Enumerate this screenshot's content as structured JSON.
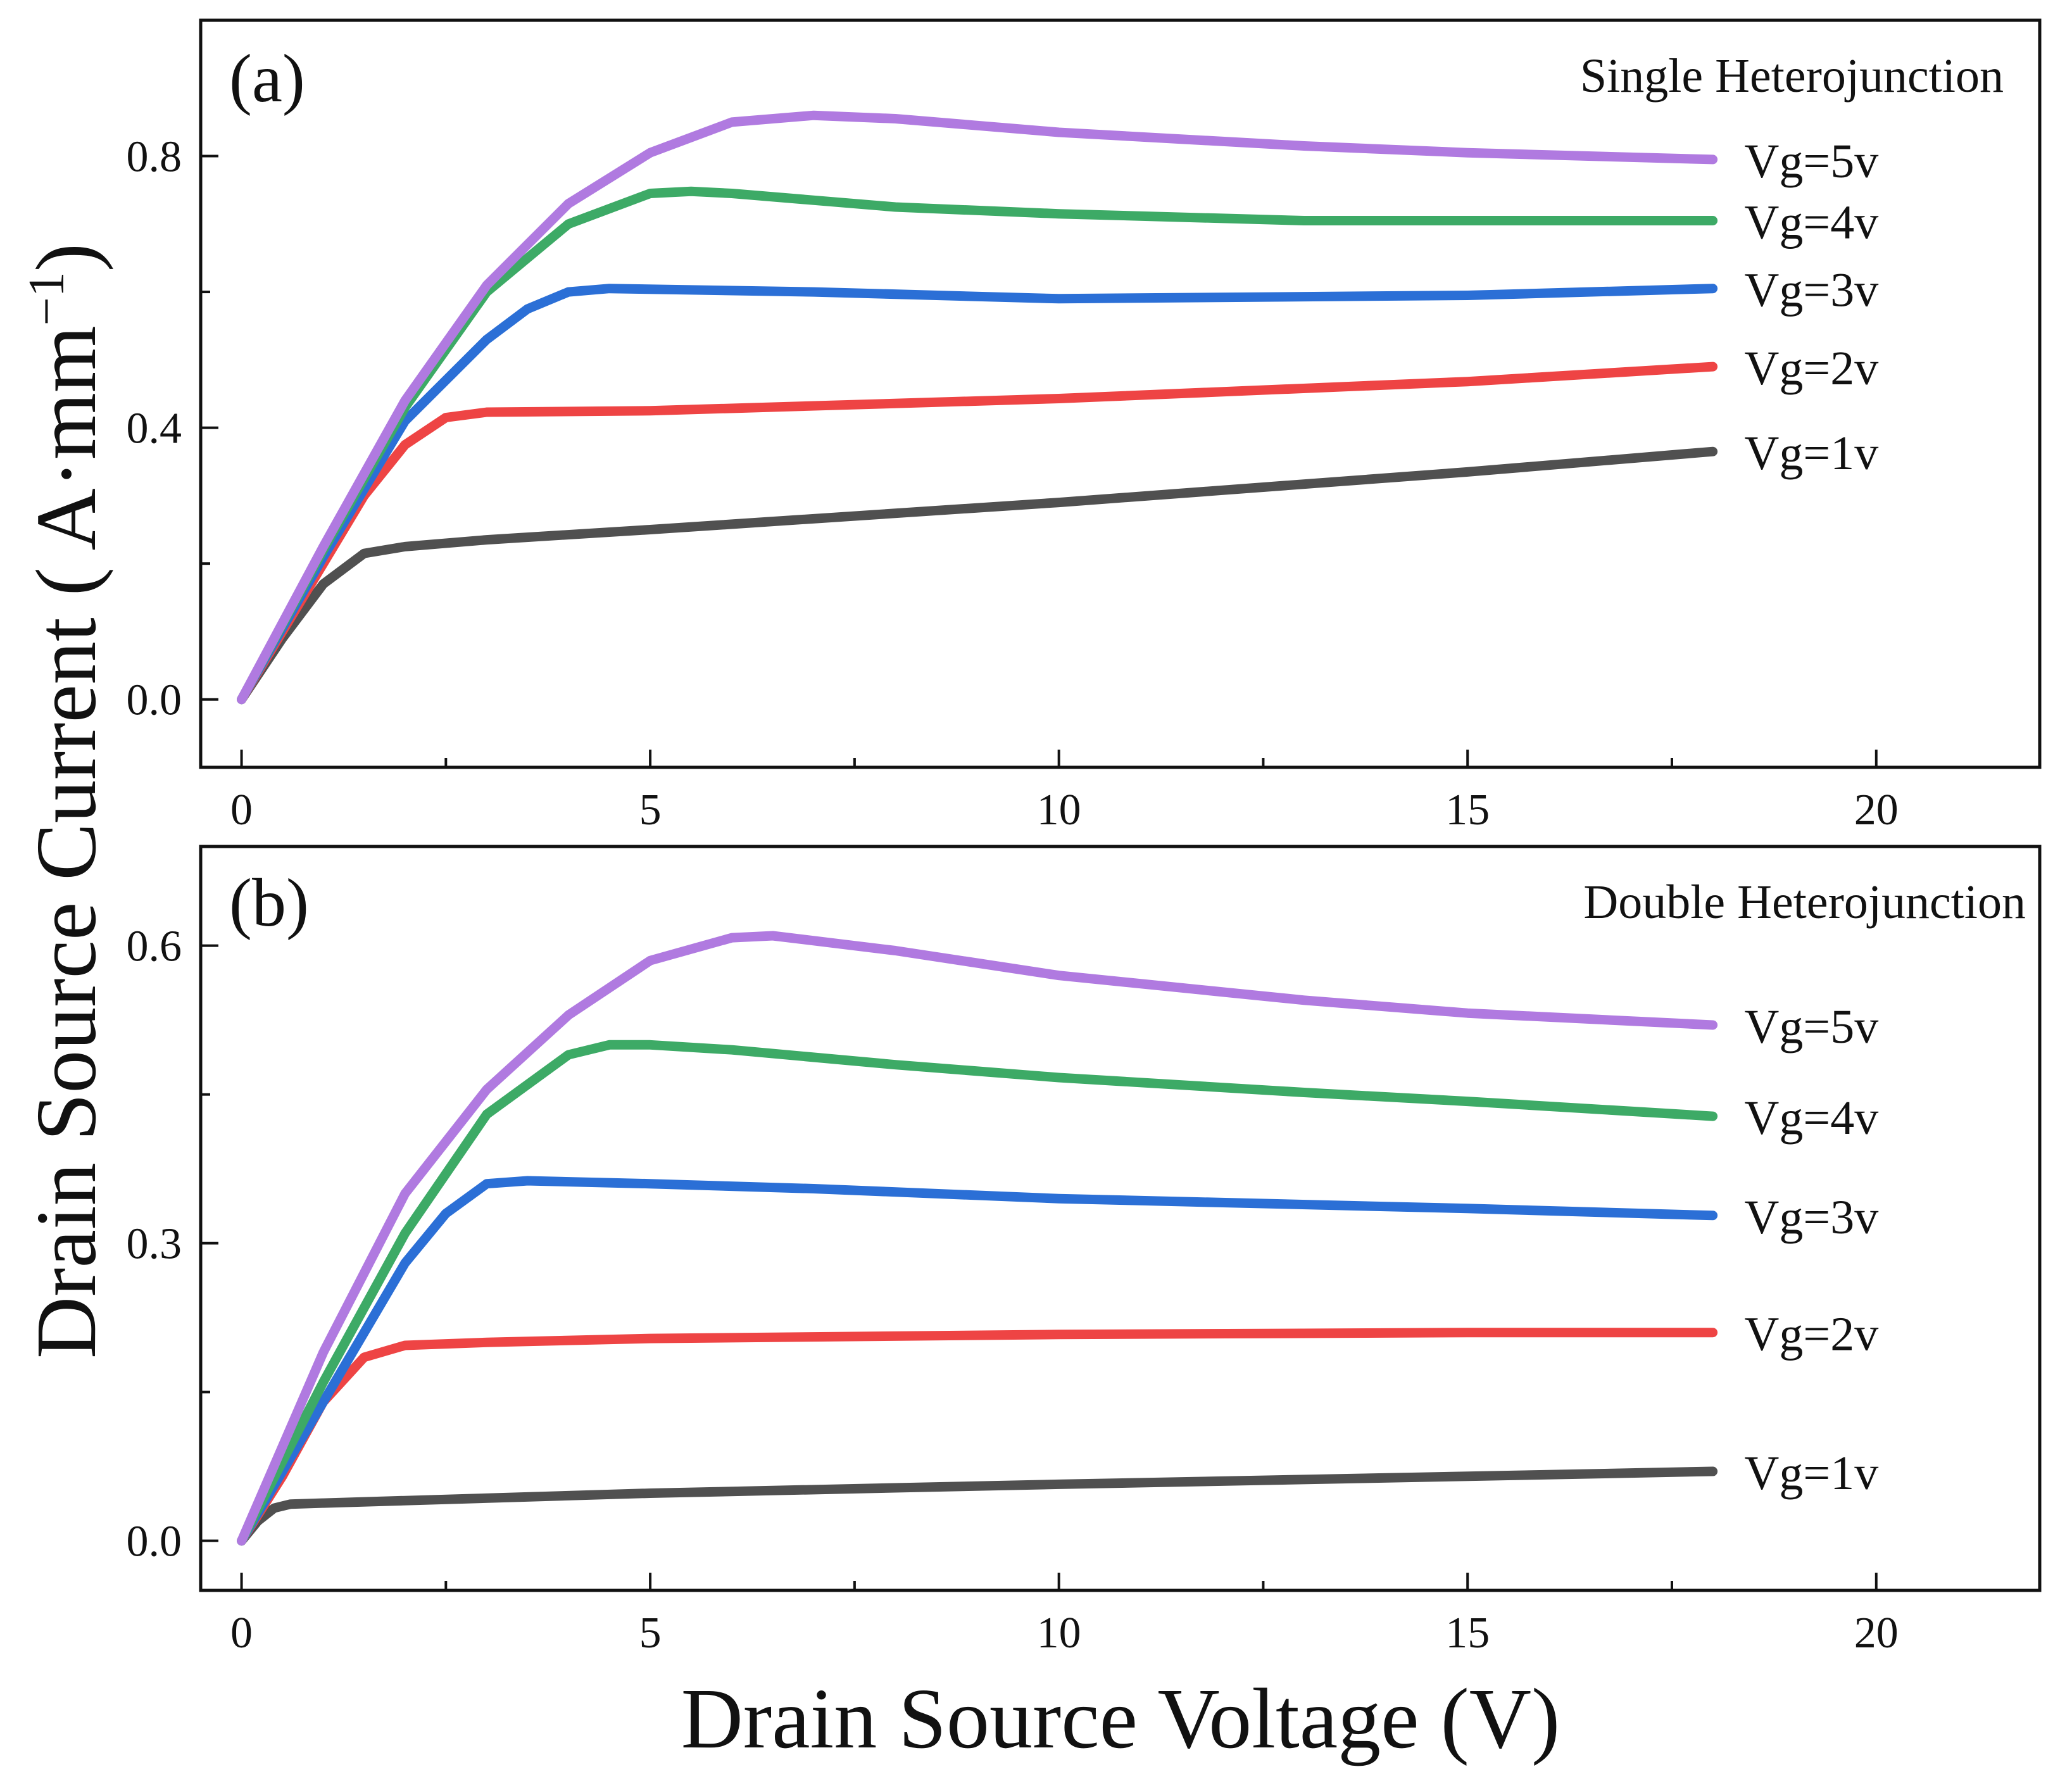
{
  "figure": {
    "xlabel": "Drain Source Voltage (V)",
    "ylabel_main": "Drain Source Current ( A·mm",
    "ylabel_sup": "−1",
    "ylabel_close": ")"
  },
  "chart_data": [
    {
      "type": "line",
      "panel_tag": "(a)",
      "title": "Single Heterojunction",
      "xlabel": "Drain Source Voltage (V)",
      "ylabel": "Drain Source Current ( A·mm−1)",
      "xlim": [
        -0.5,
        22
      ],
      "ylim": [
        -0.1,
        1.0
      ],
      "xticks": [
        0,
        5,
        10,
        15,
        20
      ],
      "xtick_labels": [
        "0",
        "5",
        "10",
        "15",
        "20"
      ],
      "yticks": [
        0.0,
        0.4,
        0.8
      ],
      "ytick_labels": [
        "0.0",
        "0.4",
        "0.8"
      ],
      "series": [
        {
          "name": "Vg=1v",
          "color": "#505050",
          "x": [
            0,
            0.5,
            1,
            1.5,
            2,
            3,
            5,
            10,
            15,
            18
          ],
          "y": [
            0,
            0.09,
            0.17,
            0.215,
            0.225,
            0.235,
            0.25,
            0.29,
            0.335,
            0.365
          ]
        },
        {
          "name": "Vg=2v",
          "color": "#EE4444",
          "x": [
            0,
            0.5,
            1,
            1.5,
            2,
            2.5,
            3,
            5,
            10,
            15,
            18
          ],
          "y": [
            0,
            0.1,
            0.2,
            0.3,
            0.375,
            0.415,
            0.423,
            0.425,
            0.443,
            0.468,
            0.49
          ]
        },
        {
          "name": "Vg=3v",
          "color": "#2B6FD6",
          "x": [
            0,
            1,
            2,
            3,
            3.5,
            4,
            4.5,
            7,
            10,
            15,
            18
          ],
          "y": [
            0,
            0.21,
            0.41,
            0.53,
            0.575,
            0.6,
            0.605,
            0.6,
            0.59,
            0.595,
            0.605
          ]
        },
        {
          "name": "Vg=4v",
          "color": "#3DAA66",
          "x": [
            0,
            1,
            2,
            3,
            4,
            5,
            5.5,
            6,
            8,
            10,
            13,
            15,
            18
          ],
          "y": [
            0,
            0.22,
            0.43,
            0.6,
            0.7,
            0.745,
            0.748,
            0.745,
            0.725,
            0.715,
            0.705,
            0.705,
            0.705
          ]
        },
        {
          "name": "Vg=5v",
          "color": "#B07AE0",
          "x": [
            0,
            1,
            2,
            3,
            4,
            5,
            6,
            7,
            8,
            10,
            13,
            15,
            18
          ],
          "y": [
            0,
            0.225,
            0.44,
            0.61,
            0.73,
            0.805,
            0.85,
            0.86,
            0.855,
            0.835,
            0.815,
            0.805,
            0.795
          ]
        }
      ]
    },
    {
      "type": "line",
      "panel_tag": "(b)",
      "title": "Double Heterojunction",
      "xlabel": "Drain Source Voltage (V)",
      "ylabel": "Drain Source Current ( A·mm−1)",
      "xlim": [
        -0.5,
        22
      ],
      "ylim": [
        -0.05,
        0.7
      ],
      "xticks": [
        0,
        5,
        10,
        15,
        20
      ],
      "xtick_labels": [
        "0",
        "5",
        "10",
        "15",
        "20"
      ],
      "yticks": [
        0.0,
        0.3,
        0.6
      ],
      "ytick_labels": [
        "0.0",
        "0.3",
        "0.6"
      ],
      "series": [
        {
          "name": "Vg=1v",
          "color": "#505050",
          "x": [
            0,
            0.2,
            0.4,
            0.6,
            1,
            5,
            10,
            15,
            18
          ],
          "y": [
            0,
            0.02,
            0.033,
            0.037,
            0.038,
            0.048,
            0.057,
            0.065,
            0.07
          ]
        },
        {
          "name": "Vg=2v",
          "color": "#EE4444",
          "x": [
            0,
            0.5,
            1,
            1.5,
            2,
            3,
            5,
            10,
            15,
            18
          ],
          "y": [
            0,
            0.065,
            0.14,
            0.185,
            0.197,
            0.2,
            0.204,
            0.208,
            0.21,
            0.21
          ]
        },
        {
          "name": "Vg=3v",
          "color": "#2B6FD6",
          "x": [
            0,
            1,
            2,
            2.5,
            3,
            3.5,
            5,
            7,
            10,
            15,
            18
          ],
          "y": [
            0,
            0.14,
            0.28,
            0.33,
            0.36,
            0.363,
            0.36,
            0.355,
            0.345,
            0.335,
            0.328
          ]
        },
        {
          "name": "Vg=4v",
          "color": "#3DAA66",
          "x": [
            0,
            1,
            2,
            3,
            4,
            4.5,
            5,
            6,
            8,
            10,
            13,
            15,
            18
          ],
          "y": [
            0,
            0.16,
            0.31,
            0.43,
            0.49,
            0.5,
            0.5,
            0.495,
            0.48,
            0.467,
            0.452,
            0.443,
            0.428
          ]
        },
        {
          "name": "Vg=5v",
          "color": "#B07AE0",
          "x": [
            0,
            1,
            2,
            3,
            4,
            5,
            6,
            6.5,
            8,
            10,
            13,
            15,
            18
          ],
          "y": [
            0,
            0.19,
            0.35,
            0.455,
            0.53,
            0.585,
            0.608,
            0.61,
            0.595,
            0.57,
            0.545,
            0.532,
            0.52
          ]
        }
      ]
    }
  ]
}
